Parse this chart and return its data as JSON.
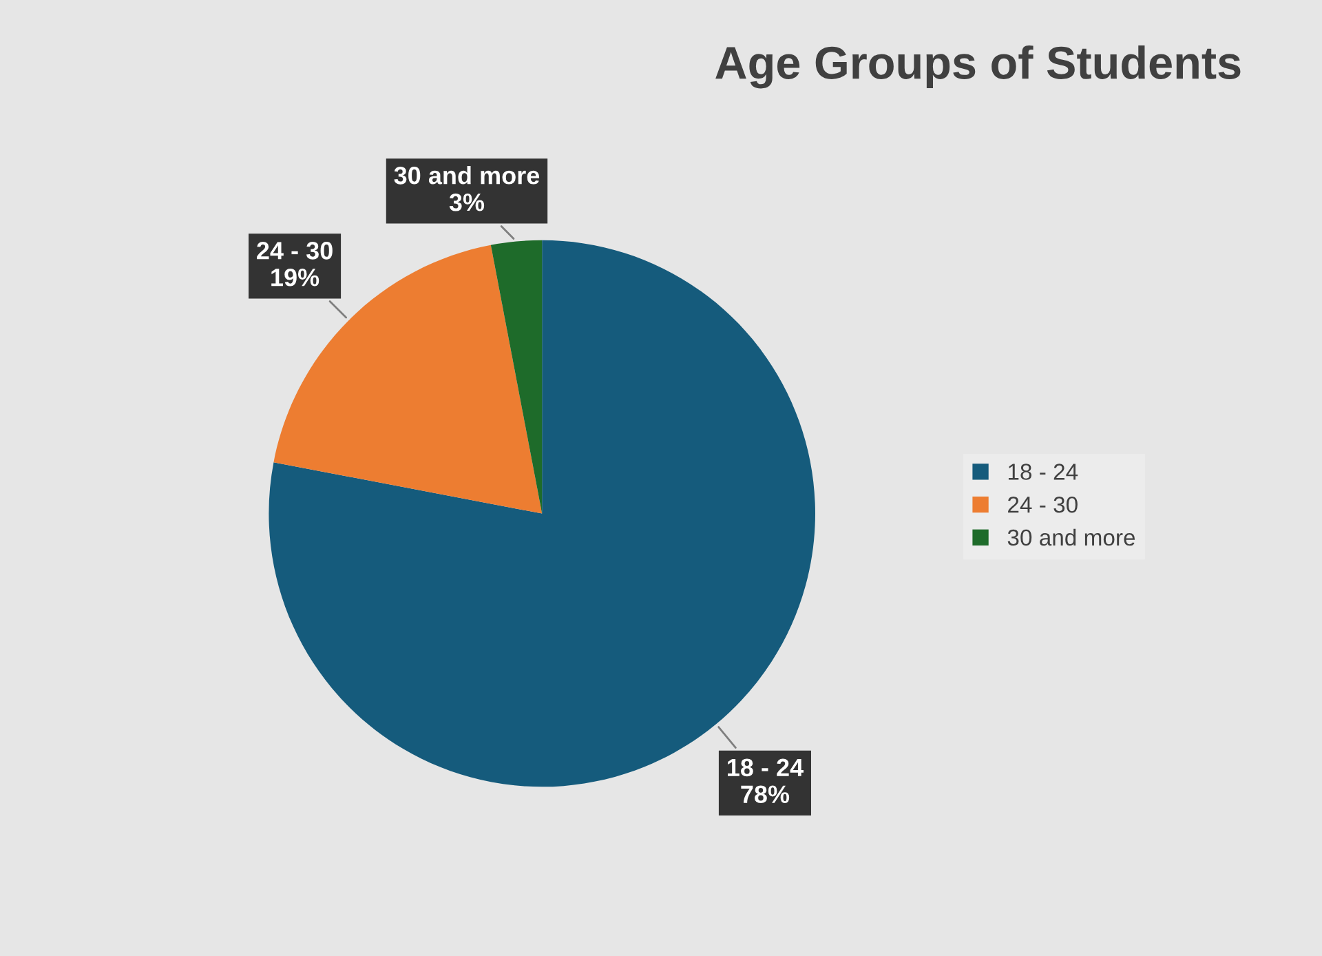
{
  "chart_data": {
    "type": "pie",
    "title": "Age Groups of Students",
    "categories": [
      "18 - 24",
      "24 - 30",
      "30 and more"
    ],
    "values": [
      78,
      19,
      3
    ],
    "value_labels": [
      "78%",
      "19%",
      "3%"
    ],
    "colors": [
      "#155b7c",
      "#ed7d31",
      "#1e6b2a"
    ],
    "legend": "right"
  }
}
